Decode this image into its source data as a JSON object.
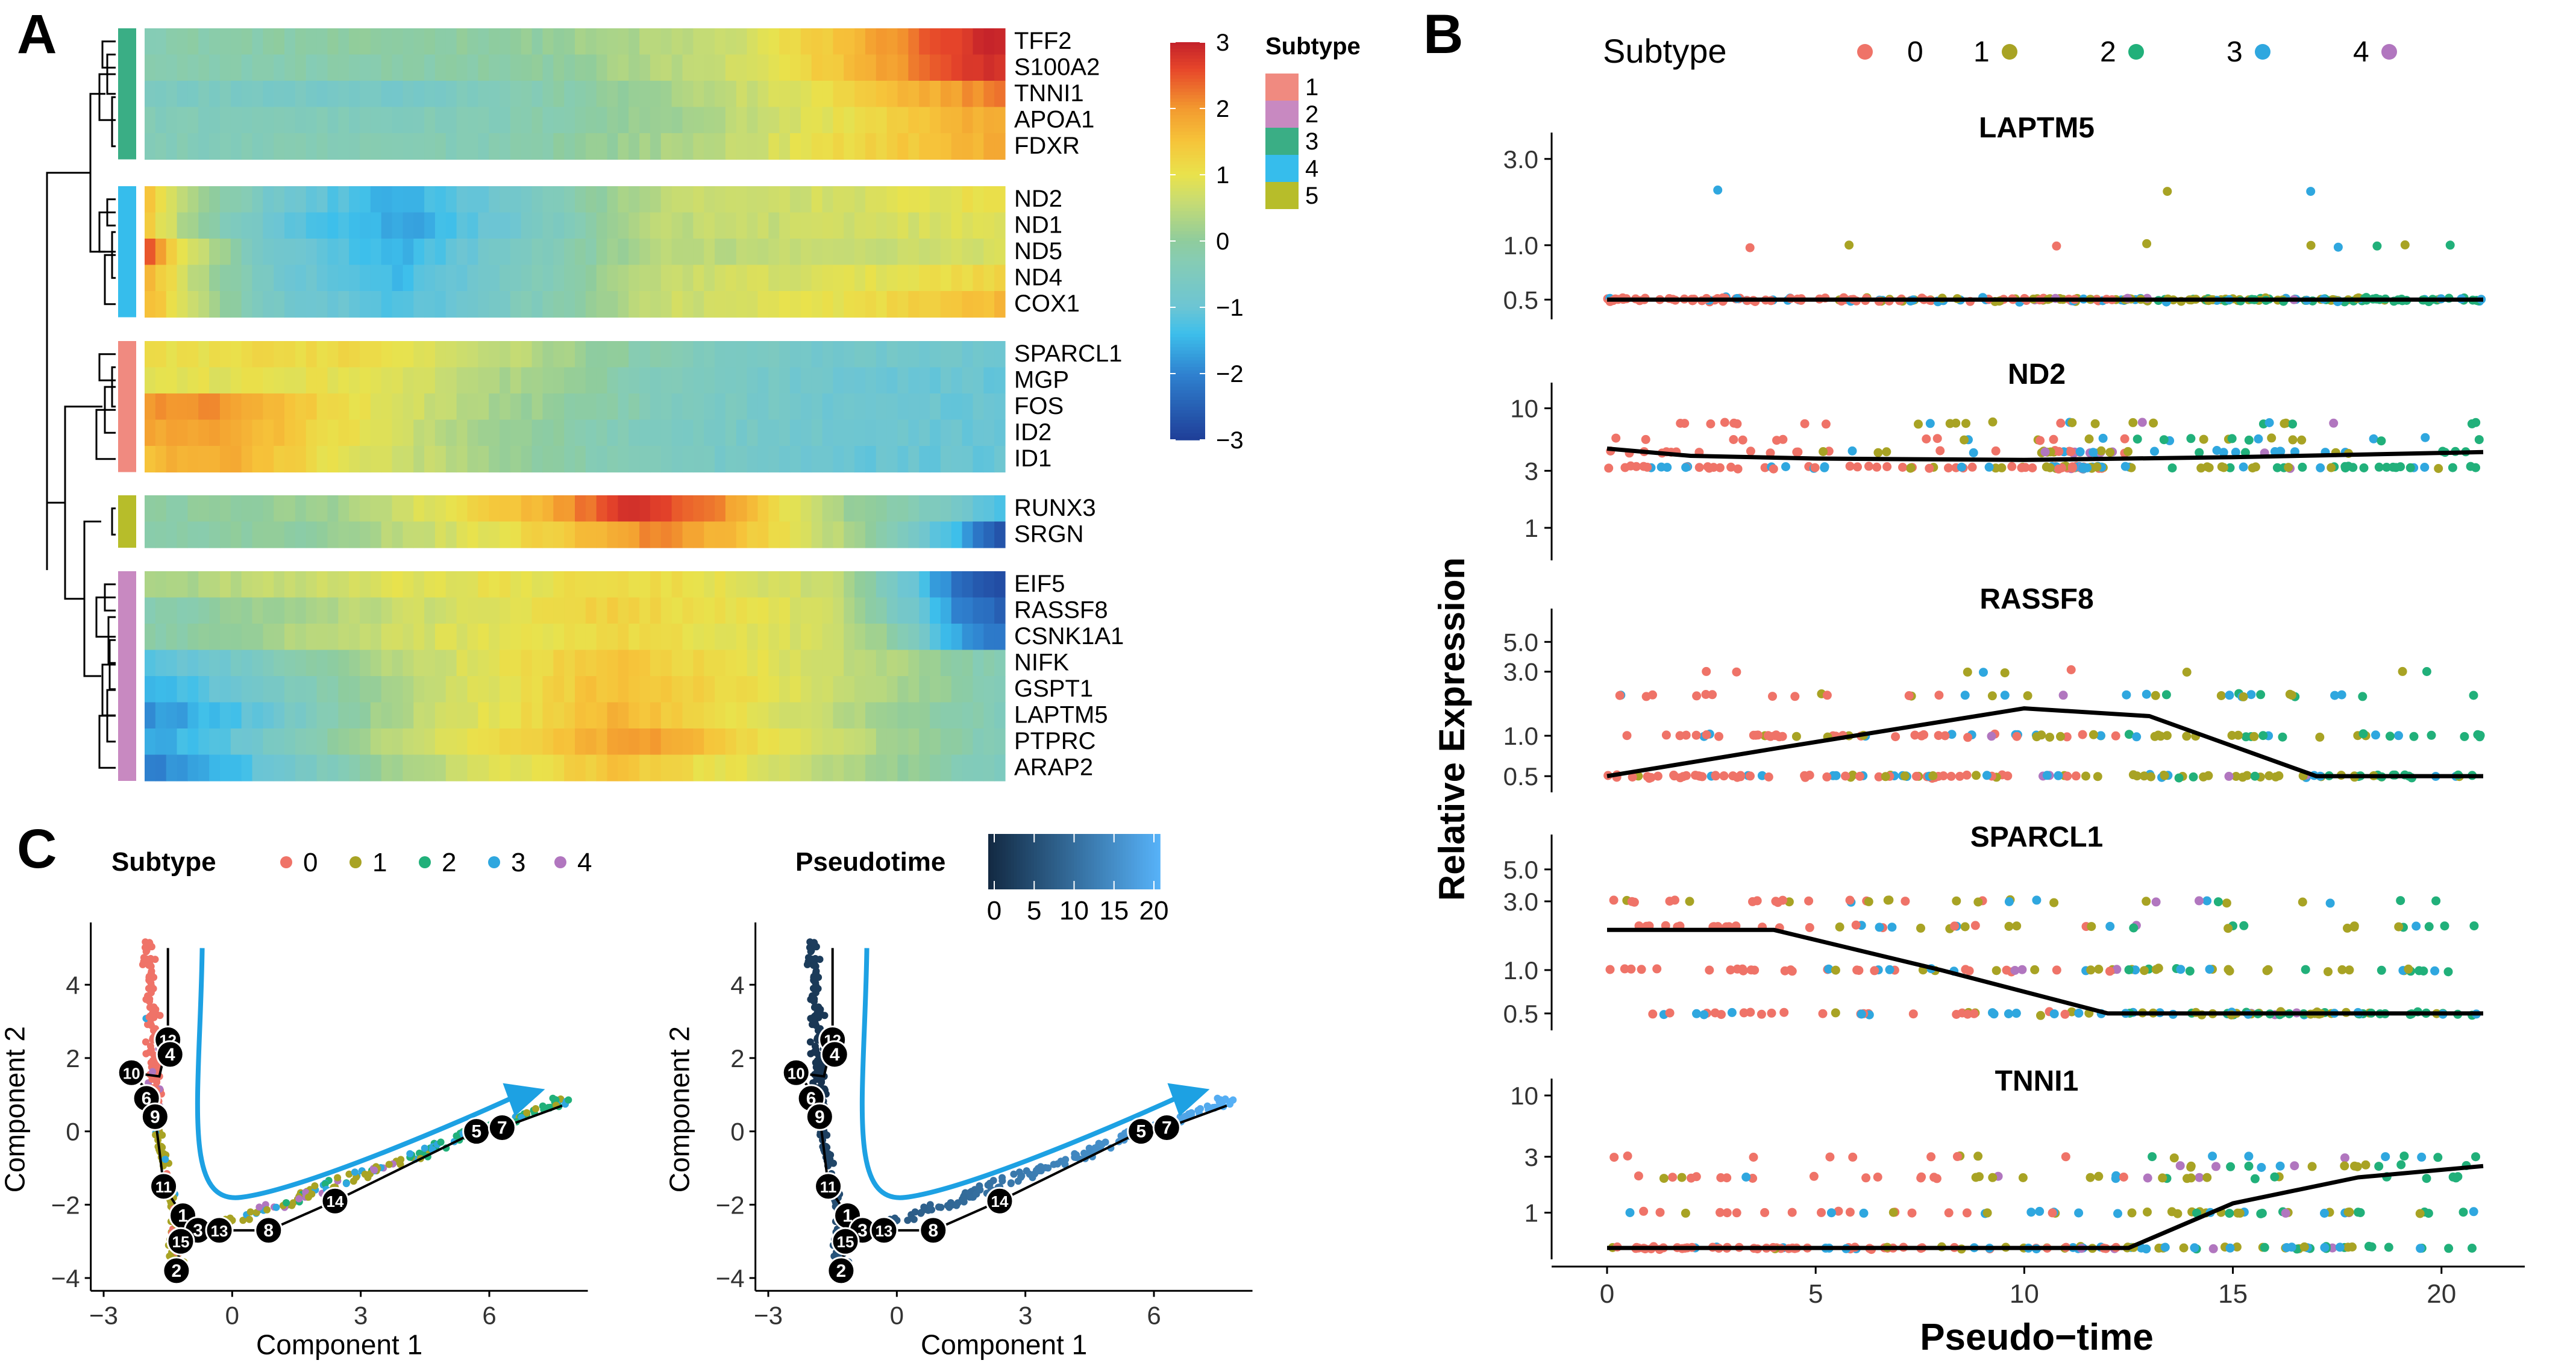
{
  "panels": {
    "a": "A",
    "b": "B",
    "c": "C"
  },
  "colors": {
    "subtype0": "#EF7368",
    "subtype1": "#A8A324",
    "subtype2": "#21B07A",
    "subtype3": "#2FA7DF",
    "subtype4": "#B176BF",
    "cluster1": "#F08A80",
    "cluster2": "#C889C1",
    "cluster3": "#3AAE85",
    "cluster4": "#36BDEC",
    "cluster5": "#B7BD2A",
    "fit_line": "#000000",
    "trajectory_arrow": "#1DA1E3",
    "pseudotime_low": "#132A43",
    "pseudotime_high": "#56B1F7"
  },
  "chart_data": [
    {
      "panel": "A",
      "type": "heatmap",
      "title": "",
      "legend_title": "Subtype",
      "legend_entries": [
        "1",
        "2",
        "3",
        "4",
        "5"
      ],
      "colorbar_ticks": [
        "3",
        "2",
        "1",
        "0",
        "−1",
        "−2",
        "−3"
      ],
      "colorbar_range": [
        -3,
        3
      ],
      "x_axis": "pseudotime (left to right), no labels",
      "groups": [
        {
          "cluster": "3",
          "genes": [
            "TFF2",
            "S100A2",
            "TNNI1",
            "APOA1",
            "FDXR"
          ],
          "pattern": "low early, rising to ~3 at late pseudotime"
        },
        {
          "cluster": "4",
          "genes": [
            "ND2",
            "ND1",
            "ND5",
            "ND4",
            "COX1"
          ],
          "pattern": "high at start, dip to ~-2 early-mid, ~0.5 late"
        },
        {
          "cluster": "1",
          "genes": [
            "SPARCL1",
            "MGP",
            "FOS",
            "ID2",
            "ID1"
          ],
          "pattern": "high (~1.5-2) early, decreasing to ~-1 late"
        },
        {
          "cluster": "5",
          "genes": [
            "RUNX3",
            "SRGN"
          ],
          "pattern": "peak ~3 mid pseudotime, ~-2.5 at end"
        },
        {
          "cluster": "2",
          "genes": [
            "EIF5",
            "RASSF8",
            "CSNK1A1",
            "NIFK",
            "GSPT1",
            "LAPTM5",
            "PTPRC",
            "ARAP2"
          ],
          "pattern": "low early, high mid (~1.5), low (~-2.5) at end"
        }
      ]
    },
    {
      "panel": "B",
      "type": "scatter",
      "legend_title": "Subtype",
      "legend_entries": [
        "0",
        "1",
        "2",
        "3",
        "4"
      ],
      "xlabel": "Pseudo−time",
      "ylabel": "Relative Expression",
      "xlim": [
        0,
        21
      ],
      "xticks": [
        "0",
        "5",
        "10",
        "15",
        "20"
      ],
      "genes": [
        {
          "name": "LAPTM5",
          "yticks": [
            "0.5",
            "1.0",
            "3.0"
          ],
          "trend": [
            [
              0,
              0.5
            ],
            [
              5,
              0.5
            ],
            [
              10,
              0.5
            ],
            [
              15,
              0.5
            ],
            [
              21,
              0.5
            ]
          ]
        },
        {
          "name": "ND2",
          "yticks": [
            "1",
            "3",
            "10"
          ],
          "trend": [
            [
              0,
              4.6
            ],
            [
              2,
              4.0
            ],
            [
              5,
              3.8
            ],
            [
              10,
              3.7
            ],
            [
              15,
              3.9
            ],
            [
              21,
              4.3
            ]
          ]
        },
        {
          "name": "RASSF8",
          "yticks": [
            "0.5",
            "1.0",
            "3.0",
            "5.0"
          ],
          "trend": [
            [
              0,
              0.5
            ],
            [
              4,
              0.8
            ],
            [
              10,
              1.6
            ],
            [
              13,
              1.4
            ],
            [
              17,
              0.5
            ],
            [
              21,
              0.5
            ]
          ]
        },
        {
          "name": "SPARCL1",
          "yticks": [
            "0.5",
            "1.0",
            "3.0",
            "5.0"
          ],
          "trend": [
            [
              0,
              1.9
            ],
            [
              4,
              1.9
            ],
            [
              8,
              1.0
            ],
            [
              12,
              0.5
            ],
            [
              21,
              0.5
            ]
          ]
        },
        {
          "name": "TNNI1",
          "yticks": [
            "1",
            "3",
            "10"
          ],
          "trend": [
            [
              0,
              0.5
            ],
            [
              12.5,
              0.5
            ],
            [
              15,
              1.2
            ],
            [
              18,
              2.0
            ],
            [
              21,
              2.5
            ]
          ]
        }
      ]
    },
    {
      "panel": "C-left",
      "type": "scatter",
      "legend_title": "Subtype",
      "legend_entries": [
        "0",
        "1",
        "2",
        "3",
        "4"
      ],
      "xlabel": "Component 1",
      "ylabel": "Component 2",
      "xlim": [
        -3.2,
        8.3
      ],
      "ylim": [
        -4.4,
        5.6
      ],
      "xticks": [
        "−3",
        "0",
        "3",
        "6"
      ],
      "yticks": [
        "4",
        "2",
        "0",
        "−2",
        "−4"
      ],
      "nodes": [
        {
          "label": "12",
          "x": -1.5,
          "y": 2.5
        },
        {
          "label": "4",
          "x": -1.45,
          "y": 2.1
        },
        {
          "label": "10",
          "x": -2.35,
          "y": 1.6
        },
        {
          "label": "6",
          "x": -2.0,
          "y": 0.9
        },
        {
          "label": "9",
          "x": -1.8,
          "y": 0.4
        },
        {
          "label": "11",
          "x": -1.6,
          "y": -1.5
        },
        {
          "label": "1",
          "x": -1.15,
          "y": -2.3
        },
        {
          "label": "3",
          "x": -0.8,
          "y": -2.7
        },
        {
          "label": "13",
          "x": -0.3,
          "y": -2.7
        },
        {
          "label": "15",
          "x": -1.2,
          "y": -3.0
        },
        {
          "label": "2",
          "x": -1.3,
          "y": -3.8
        },
        {
          "label": "8",
          "x": 0.85,
          "y": -2.7
        },
        {
          "label": "14",
          "x": 2.4,
          "y": -1.9
        },
        {
          "label": "5",
          "x": 5.7,
          "y": 0.0
        },
        {
          "label": "7",
          "x": 6.3,
          "y": 0.1
        }
      ]
    },
    {
      "panel": "C-right",
      "type": "scatter",
      "legend_title": "Pseudotime",
      "colorbar_ticks": [
        "0",
        "5",
        "10",
        "15",
        "20"
      ],
      "xlabel": "Component 1",
      "ylabel": "Component 2",
      "xlim": [
        -3.2,
        8.3
      ],
      "ylim": [
        -4.4,
        5.6
      ],
      "xticks": [
        "−3",
        "0",
        "3",
        "6"
      ],
      "yticks": [
        "4",
        "2",
        "0",
        "−2",
        "−4"
      ]
    }
  ]
}
